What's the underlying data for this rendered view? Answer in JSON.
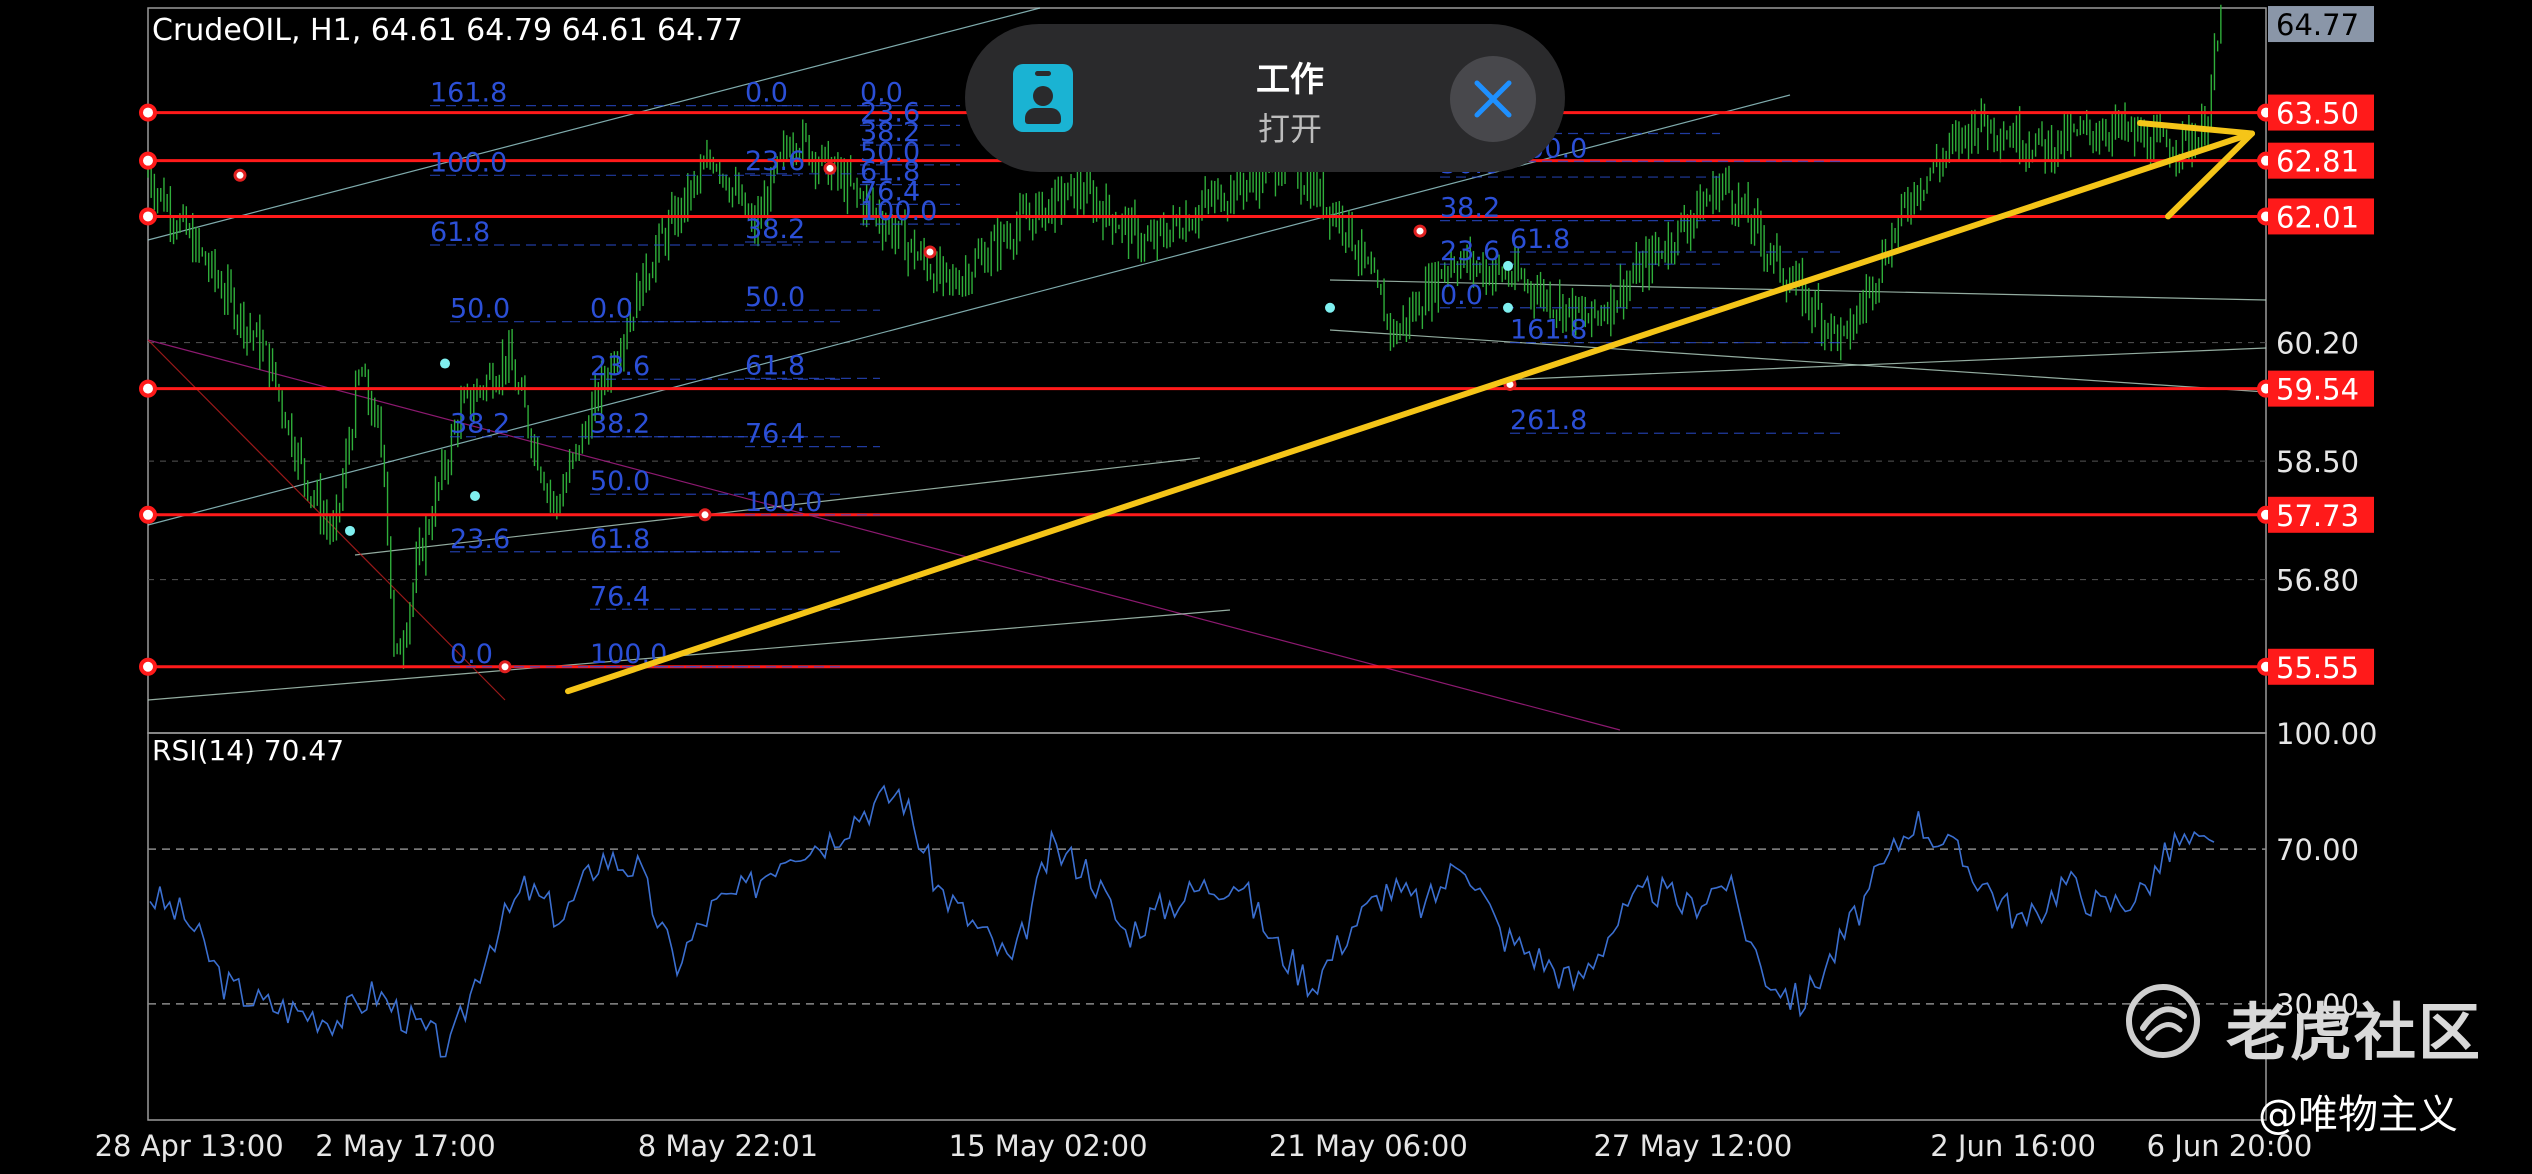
{
  "header": {
    "symbol_info": "CrudeOIL, H1, 64.61 64.79 64.61 64.77",
    "rsi_label": "RSI(14) 70.47"
  },
  "overlay": {
    "title": "工作",
    "subtitle": "打开",
    "icon": "id-badge-icon",
    "close_icon": "close-icon"
  },
  "watermark": {
    "brand": "老虎社区",
    "author": "@唯物主义",
    "icon": "tiger-logo-icon"
  },
  "colors": {
    "background": "#000000",
    "candles": "#2fae3a",
    "levels": "#ff1a1a",
    "fib": "#2b4fd6",
    "arrow": "#f5c518",
    "rsi": "#3b6fd0",
    "current_price_box": "#8a96a8"
  },
  "chart_data": [
    {
      "type": "line",
      "title": "CrudeOIL, H1",
      "description_visible": "hourly candlestick price chart with horizontal support/resistance levels and Fibonacci retracements",
      "ohlc_last": {
        "open": 64.61,
        "high": 64.79,
        "low": 64.61,
        "close": 64.77
      },
      "y_ticks": [
        60.2,
        58.5,
        56.8
      ],
      "ylim": [
        54.6,
        65.0
      ],
      "x_ticks": [
        "28 Apr 13:00",
        "2 May 17:00",
        "8 May 22:01",
        "15 May 02:00",
        "21 May 06:00",
        "27 May 12:00",
        "2 Jun 16:00",
        "6 Jun 20:00"
      ],
      "current_price": 64.77,
      "levels": [
        63.5,
        62.81,
        62.01,
        59.54,
        57.73,
        55.55
      ],
      "approx_close_path": [
        {
          "x": "27 Apr 18:00",
          "y": 62.6
        },
        {
          "x": "28 Apr 13:00",
          "y": 61.7
        },
        {
          "x": "29 Apr 06:00",
          "y": 60.9
        },
        {
          "x": "30 Apr 01:00",
          "y": 60.0
        },
        {
          "x": "30 Apr 18:00",
          "y": 58.3
        },
        {
          "x": "1 May 08:00",
          "y": 57.4
        },
        {
          "x": "1 May 20:00",
          "y": 59.8
        },
        {
          "x": "2 May 07:00",
          "y": 58.6
        },
        {
          "x": "2 May 12:00",
          "y": 55.5
        },
        {
          "x": "3 May 00:00",
          "y": 57.2
        },
        {
          "x": "3 May 18:00",
          "y": 59.2
        },
        {
          "x": "4 May 16:00",
          "y": 60.0
        },
        {
          "x": "5 May 14:00",
          "y": 57.8
        },
        {
          "x": "6 May 12:00",
          "y": 59.6
        },
        {
          "x": "7 May 12:00",
          "y": 61.5
        },
        {
          "x": "8 May 16:00",
          "y": 62.9
        },
        {
          "x": "9 May 10:00",
          "y": 61.8
        },
        {
          "x": "10 May 04:00",
          "y": 63.2
        },
        {
          "x": "11 May 20:00",
          "y": 62.0
        },
        {
          "x": "13 May 04:00",
          "y": 61.0
        },
        {
          "x": "14 May 12:00",
          "y": 61.9
        },
        {
          "x": "15 May 16:00",
          "y": 62.4
        },
        {
          "x": "17 May 00:00",
          "y": 61.6
        },
        {
          "x": "18 May 08:00",
          "y": 62.3
        },
        {
          "x": "19 May 16:00",
          "y": 62.8
        },
        {
          "x": "20 May 20:00",
          "y": 61.9
        },
        {
          "x": "21 May 18:00",
          "y": 60.3
        },
        {
          "x": "22 May 20:00",
          "y": 61.4
        },
        {
          "x": "24 May 04:00",
          "y": 61.1
        },
        {
          "x": "25 May 12:00",
          "y": 60.5
        },
        {
          "x": "26 May 20:00",
          "y": 61.5
        },
        {
          "x": "28 May 02:00",
          "y": 62.5
        },
        {
          "x": "29 May 06:00",
          "y": 61.2
        },
        {
          "x": "30 May 10:00",
          "y": 60.2
        },
        {
          "x": "31 May 18:00",
          "y": 62.4
        },
        {
          "x": "2 Jun 00:00",
          "y": 63.4
        },
        {
          "x": "3 Jun 06:00",
          "y": 63.0
        },
        {
          "x": "4 Jun 12:00",
          "y": 63.3
        },
        {
          "x": "5 Jun 14:00",
          "y": 63.0
        },
        {
          "x": "6 Jun 08:00",
          "y": 63.2
        },
        {
          "x": "6 Jun 16:00",
          "y": 64.77
        }
      ],
      "fib_labels": [
        "0.0",
        "23.6",
        "38.2",
        "50.0",
        "61.8",
        "76.4",
        "100.0",
        "161.8",
        "261.8"
      ],
      "annotations": [
        "upward yellow trend arrow from 2 May low toward 63.50 level"
      ]
    },
    {
      "type": "line",
      "title": "RSI(14)",
      "current_value": 70.47,
      "y_ticks": [
        100.0,
        70.0,
        30.0
      ],
      "ylim": [
        0,
        100
      ],
      "reference_lines": [
        70,
        30
      ],
      "approx_values": [
        58,
        52,
        35,
        30,
        28,
        26,
        33,
        25,
        18,
        45,
        60,
        52,
        68,
        65,
        40,
        55,
        60,
        70,
        72,
        80,
        85,
        60,
        50,
        40,
        70,
        65,
        48,
        55,
        60,
        62,
        45,
        35,
        50,
        60,
        55,
        68,
        48,
        42,
        35,
        50,
        60,
        55,
        62,
        38,
        30,
        45,
        62,
        78,
        70,
        60,
        50,
        62,
        55,
        58,
        72,
        70
      ]
    }
  ]
}
